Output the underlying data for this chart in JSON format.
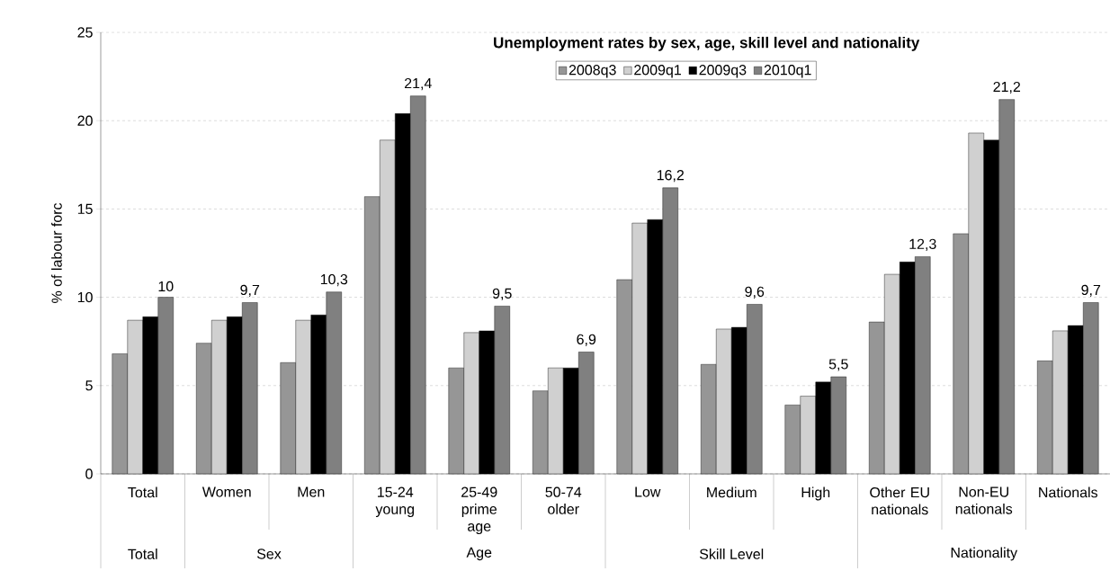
{
  "chart_data": {
    "type": "bar",
    "title": "Unemployment rates by sex, age, skill level and nationality",
    "ylabel": "% of labour forc",
    "categories": [
      "Total",
      "Women",
      "Men",
      "15-24 young",
      "25-49 prime age",
      "50-74 older",
      "Low",
      "Medium",
      "High",
      "Other EU nationals",
      "Non-EU nationals",
      "Nationals"
    ],
    "series": [
      {
        "name": "2008q3",
        "color": "#969696",
        "values": [
          6.8,
          7.4,
          6.3,
          15.7,
          6.0,
          4.7,
          11.0,
          6.2,
          3.9,
          8.6,
          13.6,
          6.4
        ]
      },
      {
        "name": "2009q1",
        "color": "#d0d0d0",
        "values": [
          8.7,
          8.7,
          8.7,
          18.9,
          8.0,
          6.0,
          14.2,
          8.2,
          4.4,
          11.3,
          19.3,
          8.1
        ]
      },
      {
        "name": "2009q3",
        "color": "#000000",
        "values": [
          8.9,
          8.9,
          9.0,
          20.4,
          8.1,
          6.0,
          14.4,
          8.3,
          5.2,
          12.0,
          18.9,
          8.4
        ]
      },
      {
        "name": "2010q1",
        "color": "#808080",
        "values": [
          10.0,
          9.7,
          10.3,
          21.4,
          9.5,
          6.9,
          16.2,
          9.6,
          5.5,
          12.3,
          21.2,
          9.7
        ],
        "value_labels": [
          "10",
          "9,7",
          "10,3",
          "21,4",
          "9,5",
          "6,9",
          "16,2",
          "9,6",
          "5,5",
          "12,3",
          "21,2",
          "9,7"
        ]
      }
    ],
    "ylim": [
      0,
      25
    ],
    "yticks": [
      0,
      5,
      10,
      15,
      20,
      25
    ],
    "grid": "y",
    "legend": "top",
    "annotations": [
      "Total",
      "Sex",
      "Age",
      "Skill Level",
      "Nationality"
    ]
  }
}
